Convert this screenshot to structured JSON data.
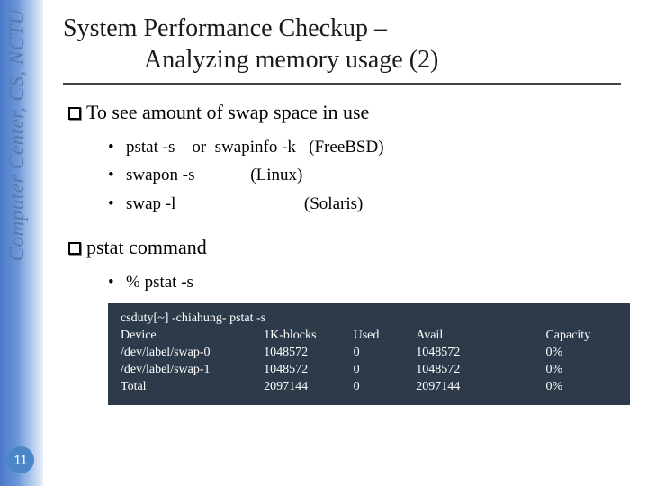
{
  "sidebar": {
    "label": "Computer Center, CS, NCTU",
    "text_color": "#5a7aa8",
    "gradient_from": "#4a7ac8",
    "gradient_to": "#e8f0fa"
  },
  "page_number": "11",
  "title": {
    "line1": "System Performance Checkup –",
    "line2": "Analyzing memory usage (2)"
  },
  "section1": {
    "heading": "To see amount of swap space in use",
    "items": [
      "pstat -s    or  swapinfo -k   (FreeBSD)",
      "swapon -s             (Linux)",
      "swap -l                              (Solaris)"
    ]
  },
  "section2": {
    "heading": "pstat command",
    "items": [
      "% pstat -s"
    ]
  },
  "terminal": {
    "background": "#2d3a4a",
    "text_color": "#ffffff",
    "command": "csduty[~] -chiahung- pstat -s",
    "headers": {
      "device": "Device",
      "blocks": "1K-blocks",
      "used": "Used",
      "avail": "Avail",
      "capacity": "Capacity"
    },
    "rows": [
      {
        "device": "/dev/label/swap-0",
        "blocks": "1048572",
        "used": "0",
        "avail": "1048572",
        "capacity": "0%"
      },
      {
        "device": "/dev/label/swap-1",
        "blocks": "1048572",
        "used": "0",
        "avail": "1048572",
        "capacity": "0%"
      },
      {
        "device": "Total",
        "blocks": "2097144",
        "used": "0",
        "avail": "2097144",
        "capacity": "0%"
      }
    ]
  }
}
